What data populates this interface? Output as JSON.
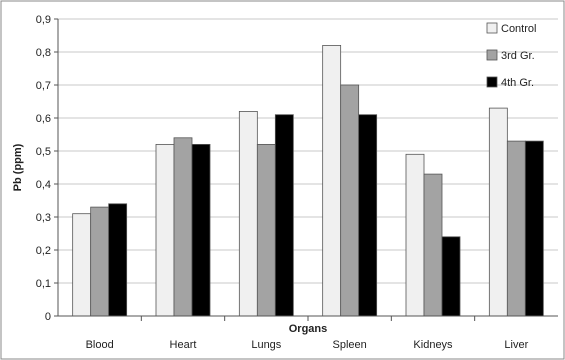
{
  "chart_data": {
    "type": "bar",
    "title": "",
    "xlabel": "Organs",
    "ylabel": "Pb (ppm)",
    "ylim": [
      0,
      0.9
    ],
    "yticks": [
      "0",
      "0,1",
      "0,2",
      "0,3",
      "0,4",
      "0,5",
      "0,6",
      "0,7",
      "0,8",
      "0,9"
    ],
    "grid": true,
    "legend_position": "top-right",
    "categories": [
      "Blood",
      "Heart",
      "Lungs",
      "Spleen",
      "Kidneys",
      "Liver"
    ],
    "series": [
      {
        "name": "Control",
        "color": "#f0f0f0",
        "values": [
          0.31,
          0.52,
          0.62,
          0.82,
          0.49,
          0.63
        ]
      },
      {
        "name": "3rd Gr.",
        "color": "#a3a3a3",
        "values": [
          0.33,
          0.54,
          0.52,
          0.7,
          0.43,
          0.53
        ]
      },
      {
        "name": "4th Gr.",
        "color": "#000000",
        "values": [
          0.34,
          0.52,
          0.61,
          0.61,
          0.24,
          0.53
        ]
      }
    ]
  }
}
